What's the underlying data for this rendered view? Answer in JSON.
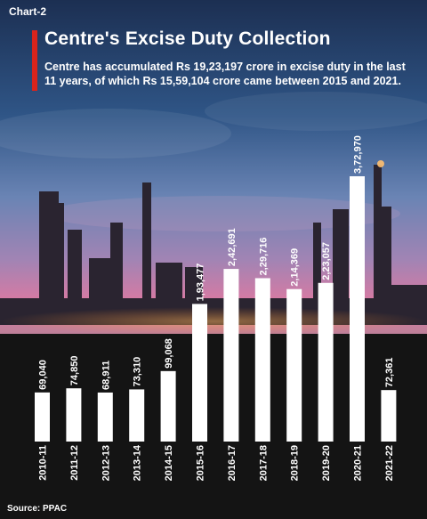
{
  "header": {
    "chart_label": "Chart-2",
    "title": "Centre's Excise Duty Collection",
    "subtitle": "Centre has accumulated Rs 19,23,197 crore in excise duty in the last 11 years, of which Rs 15,59,104 crore came between 2015 and 2021."
  },
  "source": "Source: PPAC",
  "colors": {
    "accent": "#d9241c",
    "bar": "#ffffff",
    "text": "#ffffff",
    "ground": "#141414"
  },
  "chart_data": {
    "type": "bar",
    "title": "Centre's Excise Duty Collection",
    "categories": [
      "2010-11",
      "2011-12",
      "2012-13",
      "2013-14",
      "2014-15",
      "2015-16",
      "2016-17",
      "2017-18",
      "2018-19",
      "2019-20",
      "2020-21",
      "2021-22"
    ],
    "values": [
      69040,
      74850,
      68911,
      73310,
      99068,
      193477,
      242691,
      229716,
      214369,
      223057,
      372970,
      72361
    ],
    "value_labels": [
      "69,040",
      "74,850",
      "68,911",
      "73,310",
      "99,068",
      "1,93,477",
      "2,42,691",
      "2,29,716",
      "2,14,369",
      "2,23,057",
      "3,72,970",
      "72,361"
    ],
    "grid": false,
    "legend": "none"
  }
}
